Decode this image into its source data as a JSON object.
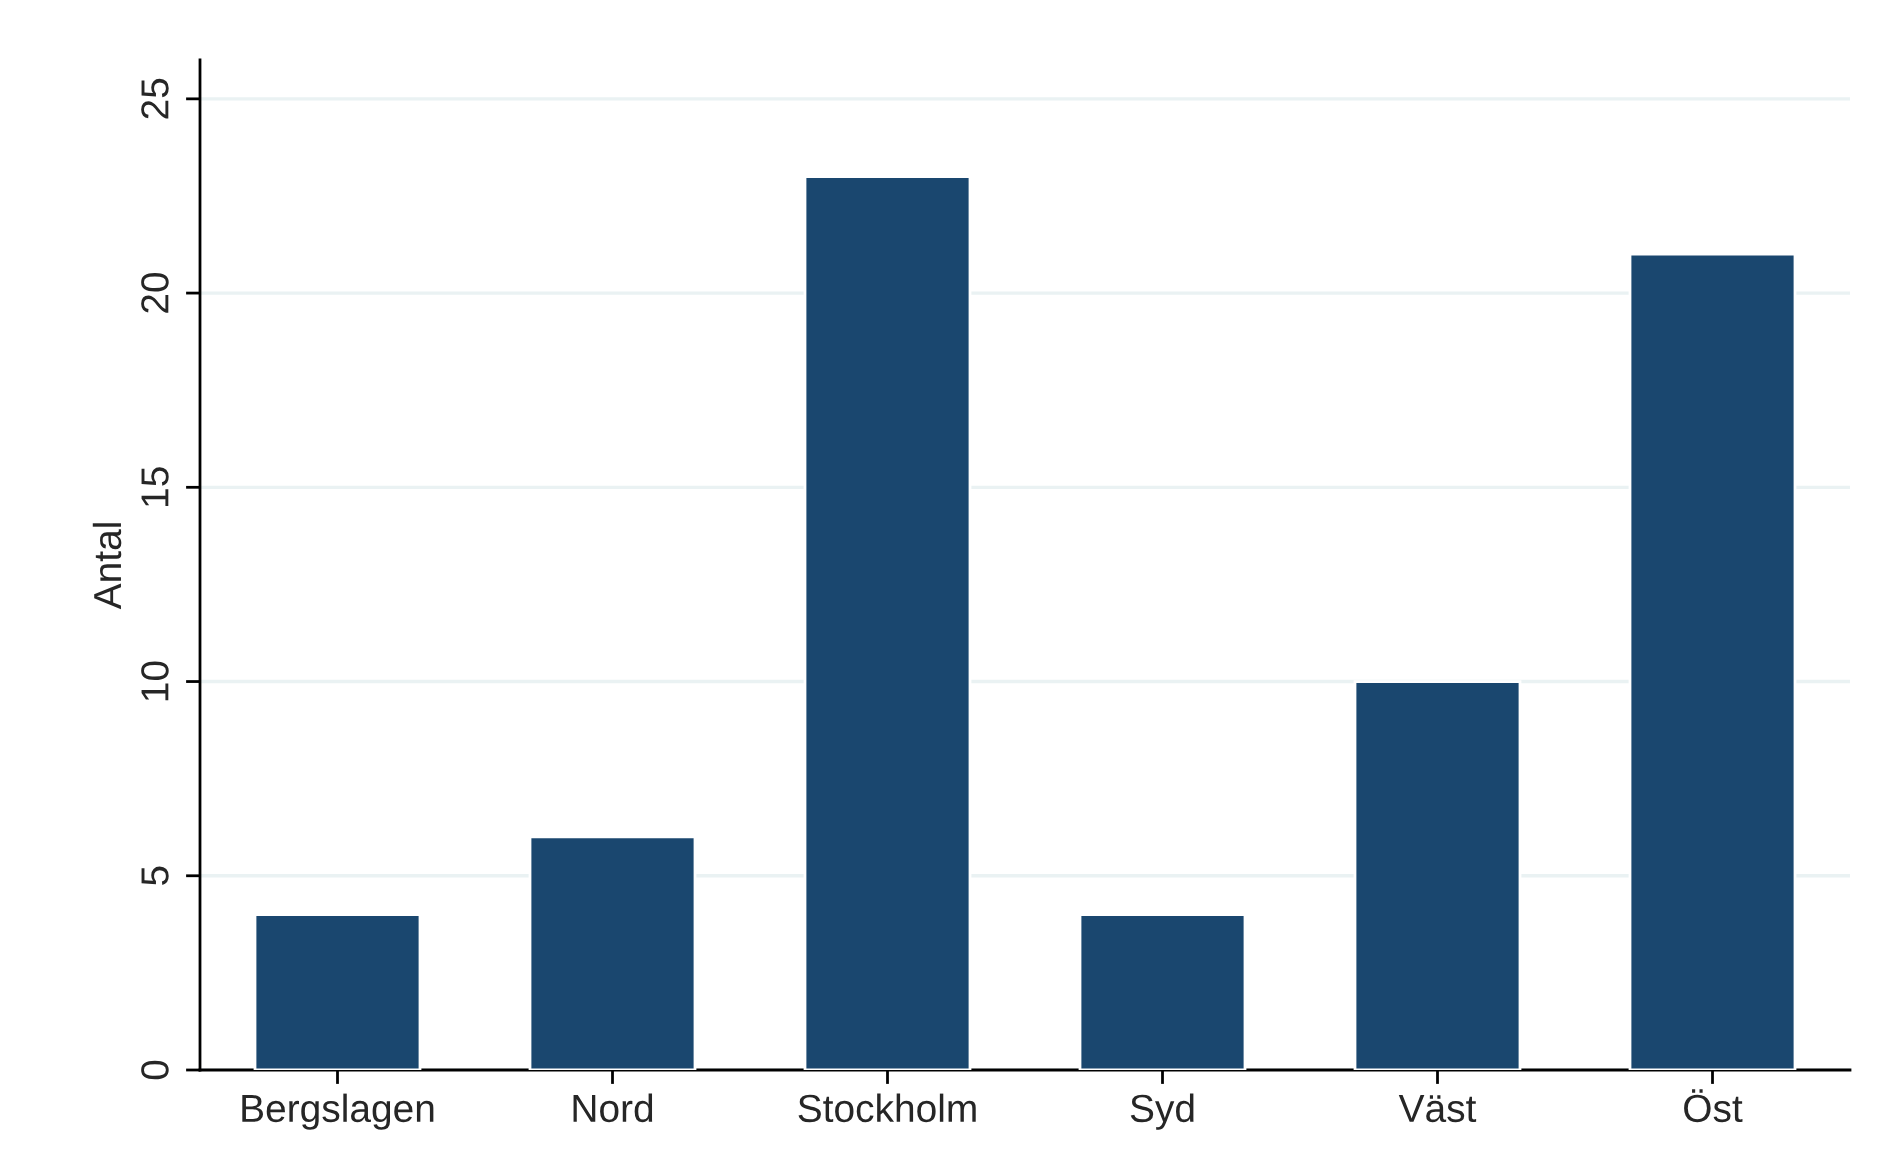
{
  "chart_data": {
    "type": "bar",
    "ylabel": "Antal",
    "categories": [
      "Bergslagen",
      "Nord",
      "Stockholm",
      "Syd",
      "Väst",
      "Öst"
    ],
    "values": [
      4,
      6,
      23,
      4,
      10,
      21
    ],
    "color": "#1a476f",
    "ylim": [
      0,
      26
    ],
    "yticks": [
      0,
      5,
      10,
      15,
      20,
      25
    ],
    "grid": "y"
  }
}
